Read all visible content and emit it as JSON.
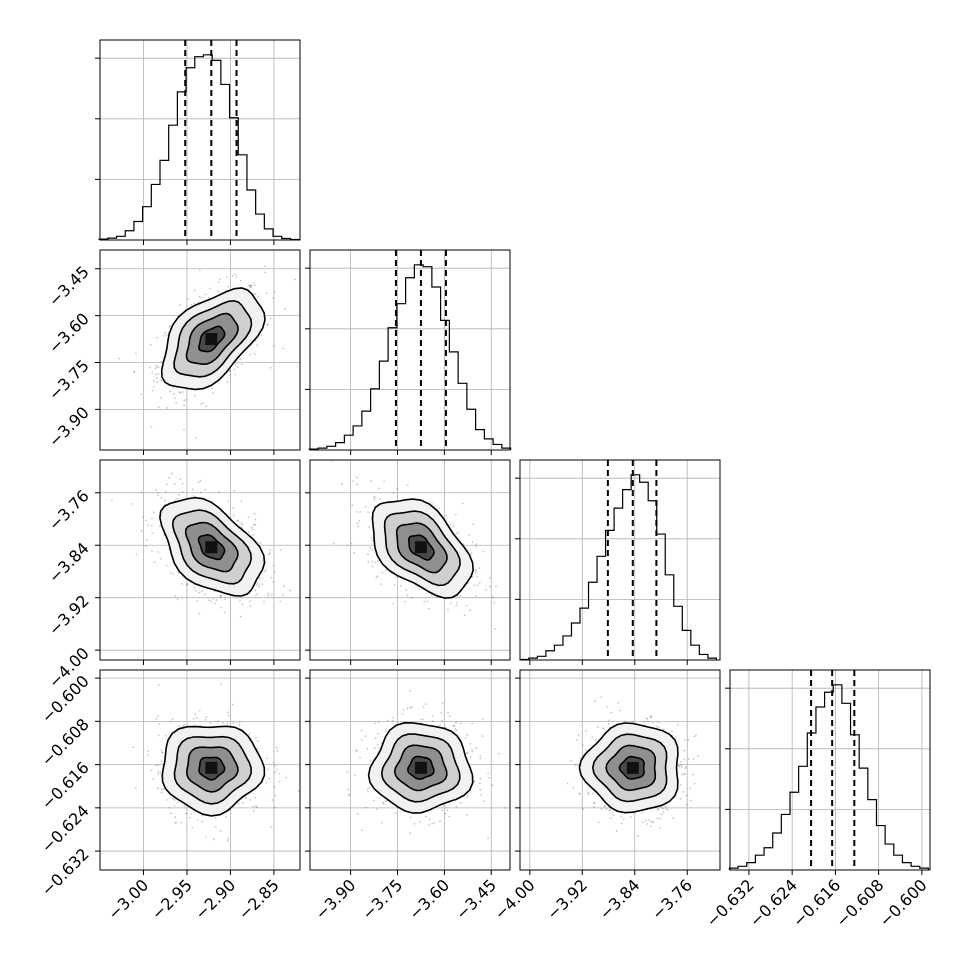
{
  "chart_data": {
    "type": "corner",
    "grid": true,
    "parameters": [
      {
        "id": "p1",
        "range": [
          -3.05,
          -2.82
        ],
        "ticks": [
          -3.0,
          -2.95,
          -2.9,
          -2.85
        ],
        "tick_labels": [
          "−3.00",
          "−2.95",
          "−2.90",
          "−2.85"
        ],
        "quantiles": [
          -2.952,
          -2.922,
          -2.893
        ],
        "center": -2.922,
        "sigma": 0.029,
        "hist_x": [
          -3.046,
          -3.036,
          -3.026,
          -3.016,
          -3.006,
          -2.996,
          -2.986,
          -2.976,
          -2.966,
          -2.956,
          -2.946,
          -2.936,
          -2.926,
          -2.916,
          -2.906,
          -2.896,
          -2.886,
          -2.876,
          -2.866,
          -2.856,
          -2.846,
          -2.836,
          -2.826
        ],
        "hist_y": [
          0.005,
          0.01,
          0.02,
          0.05,
          0.1,
          0.18,
          0.3,
          0.43,
          0.62,
          0.8,
          0.93,
          0.99,
          1.0,
          0.97,
          0.84,
          0.66,
          0.46,
          0.27,
          0.14,
          0.06,
          0.02,
          0.008,
          0.003
        ]
      },
      {
        "id": "p2",
        "range": [
          -4.03,
          -3.39
        ],
        "ticks": [
          -3.9,
          -3.75,
          -3.6,
          -3.45
        ],
        "tick_labels": [
          "−3.90",
          "−3.75",
          "−3.60",
          "−3.45"
        ],
        "quantiles": [
          -3.755,
          -3.675,
          -3.595
        ],
        "center": -3.675,
        "sigma": 0.08,
        "hist_x": [
          -4.018,
          -3.99,
          -3.962,
          -3.934,
          -3.906,
          -3.878,
          -3.85,
          -3.822,
          -3.794,
          -3.766,
          -3.738,
          -3.71,
          -3.682,
          -3.654,
          -3.626,
          -3.598,
          -3.57,
          -3.542,
          -3.514,
          -3.486,
          -3.458,
          -3.43,
          -3.402
        ],
        "hist_y": [
          0.005,
          0.01,
          0.02,
          0.04,
          0.08,
          0.13,
          0.21,
          0.33,
          0.48,
          0.66,
          0.79,
          0.93,
          1.0,
          0.99,
          0.88,
          0.7,
          0.53,
          0.36,
          0.22,
          0.11,
          0.06,
          0.03,
          0.01
        ]
      },
      {
        "id": "p3",
        "range": [
          -4.015,
          -3.71
        ],
        "ticks": [
          -4.0,
          -3.92,
          -3.84,
          -3.76
        ],
        "tick_labels": [
          "−4.00",
          "−3.92",
          "−3.84",
          "−3.76"
        ],
        "quantiles": [
          -3.881,
          -3.843,
          -3.807
        ],
        "center": -3.843,
        "sigma": 0.037,
        "hist_x": [
          -4.008,
          -3.995,
          -3.982,
          -3.969,
          -3.956,
          -3.943,
          -3.93,
          -3.917,
          -3.904,
          -3.891,
          -3.878,
          -3.865,
          -3.852,
          -3.839,
          -3.826,
          -3.813,
          -3.8,
          -3.787,
          -3.774,
          -3.761,
          -3.748,
          -3.735,
          -3.722
        ],
        "hist_y": [
          0.003,
          0.01,
          0.02,
          0.05,
          0.08,
          0.13,
          0.2,
          0.28,
          0.42,
          0.56,
          0.7,
          0.82,
          0.92,
          1.0,
          0.96,
          0.86,
          0.68,
          0.46,
          0.29,
          0.16,
          0.08,
          0.03,
          0.01
        ]
      },
      {
        "id": "p4",
        "range": [
          -0.6355,
          -0.5985
        ],
        "ticks": [
          -0.632,
          -0.624,
          -0.616,
          -0.608,
          -0.6
        ],
        "tick_labels": [
          "−0.632",
          "−0.624",
          "−0.616",
          "−0.608",
          "−0.600"
        ],
        "quantiles": [
          -0.6205,
          -0.6166,
          -0.6125
        ],
        "center": -0.6166,
        "sigma": 0.0041,
        "hist_x": [
          -0.6348,
          -0.6332,
          -0.6316,
          -0.63,
          -0.6284,
          -0.6268,
          -0.6252,
          -0.6236,
          -0.622,
          -0.6204,
          -0.6188,
          -0.6172,
          -0.6156,
          -0.614,
          -0.6124,
          -0.6108,
          -0.6092,
          -0.6076,
          -0.606,
          -0.6044,
          -0.6028,
          -0.6012,
          -0.5996
        ],
        "hist_y": [
          0.01,
          0.02,
          0.04,
          0.08,
          0.12,
          0.2,
          0.3,
          0.42,
          0.56,
          0.74,
          0.88,
          0.96,
          1.0,
          0.9,
          0.73,
          0.55,
          0.38,
          0.24,
          0.14,
          0.08,
          0.04,
          0.02,
          0.01
        ]
      }
    ],
    "pair_correlations": {
      "p1-p2": 0.5,
      "p1-p3": -0.45,
      "p2-p3": -0.45,
      "p1-p4": 0.0,
      "p2-p4": 0.0,
      "p3-p4": 0.0
    },
    "contour_levels_sigma": [
      0.5,
      1.0,
      1.5,
      2.0
    ],
    "histogram_y_tick_count": 3
  }
}
